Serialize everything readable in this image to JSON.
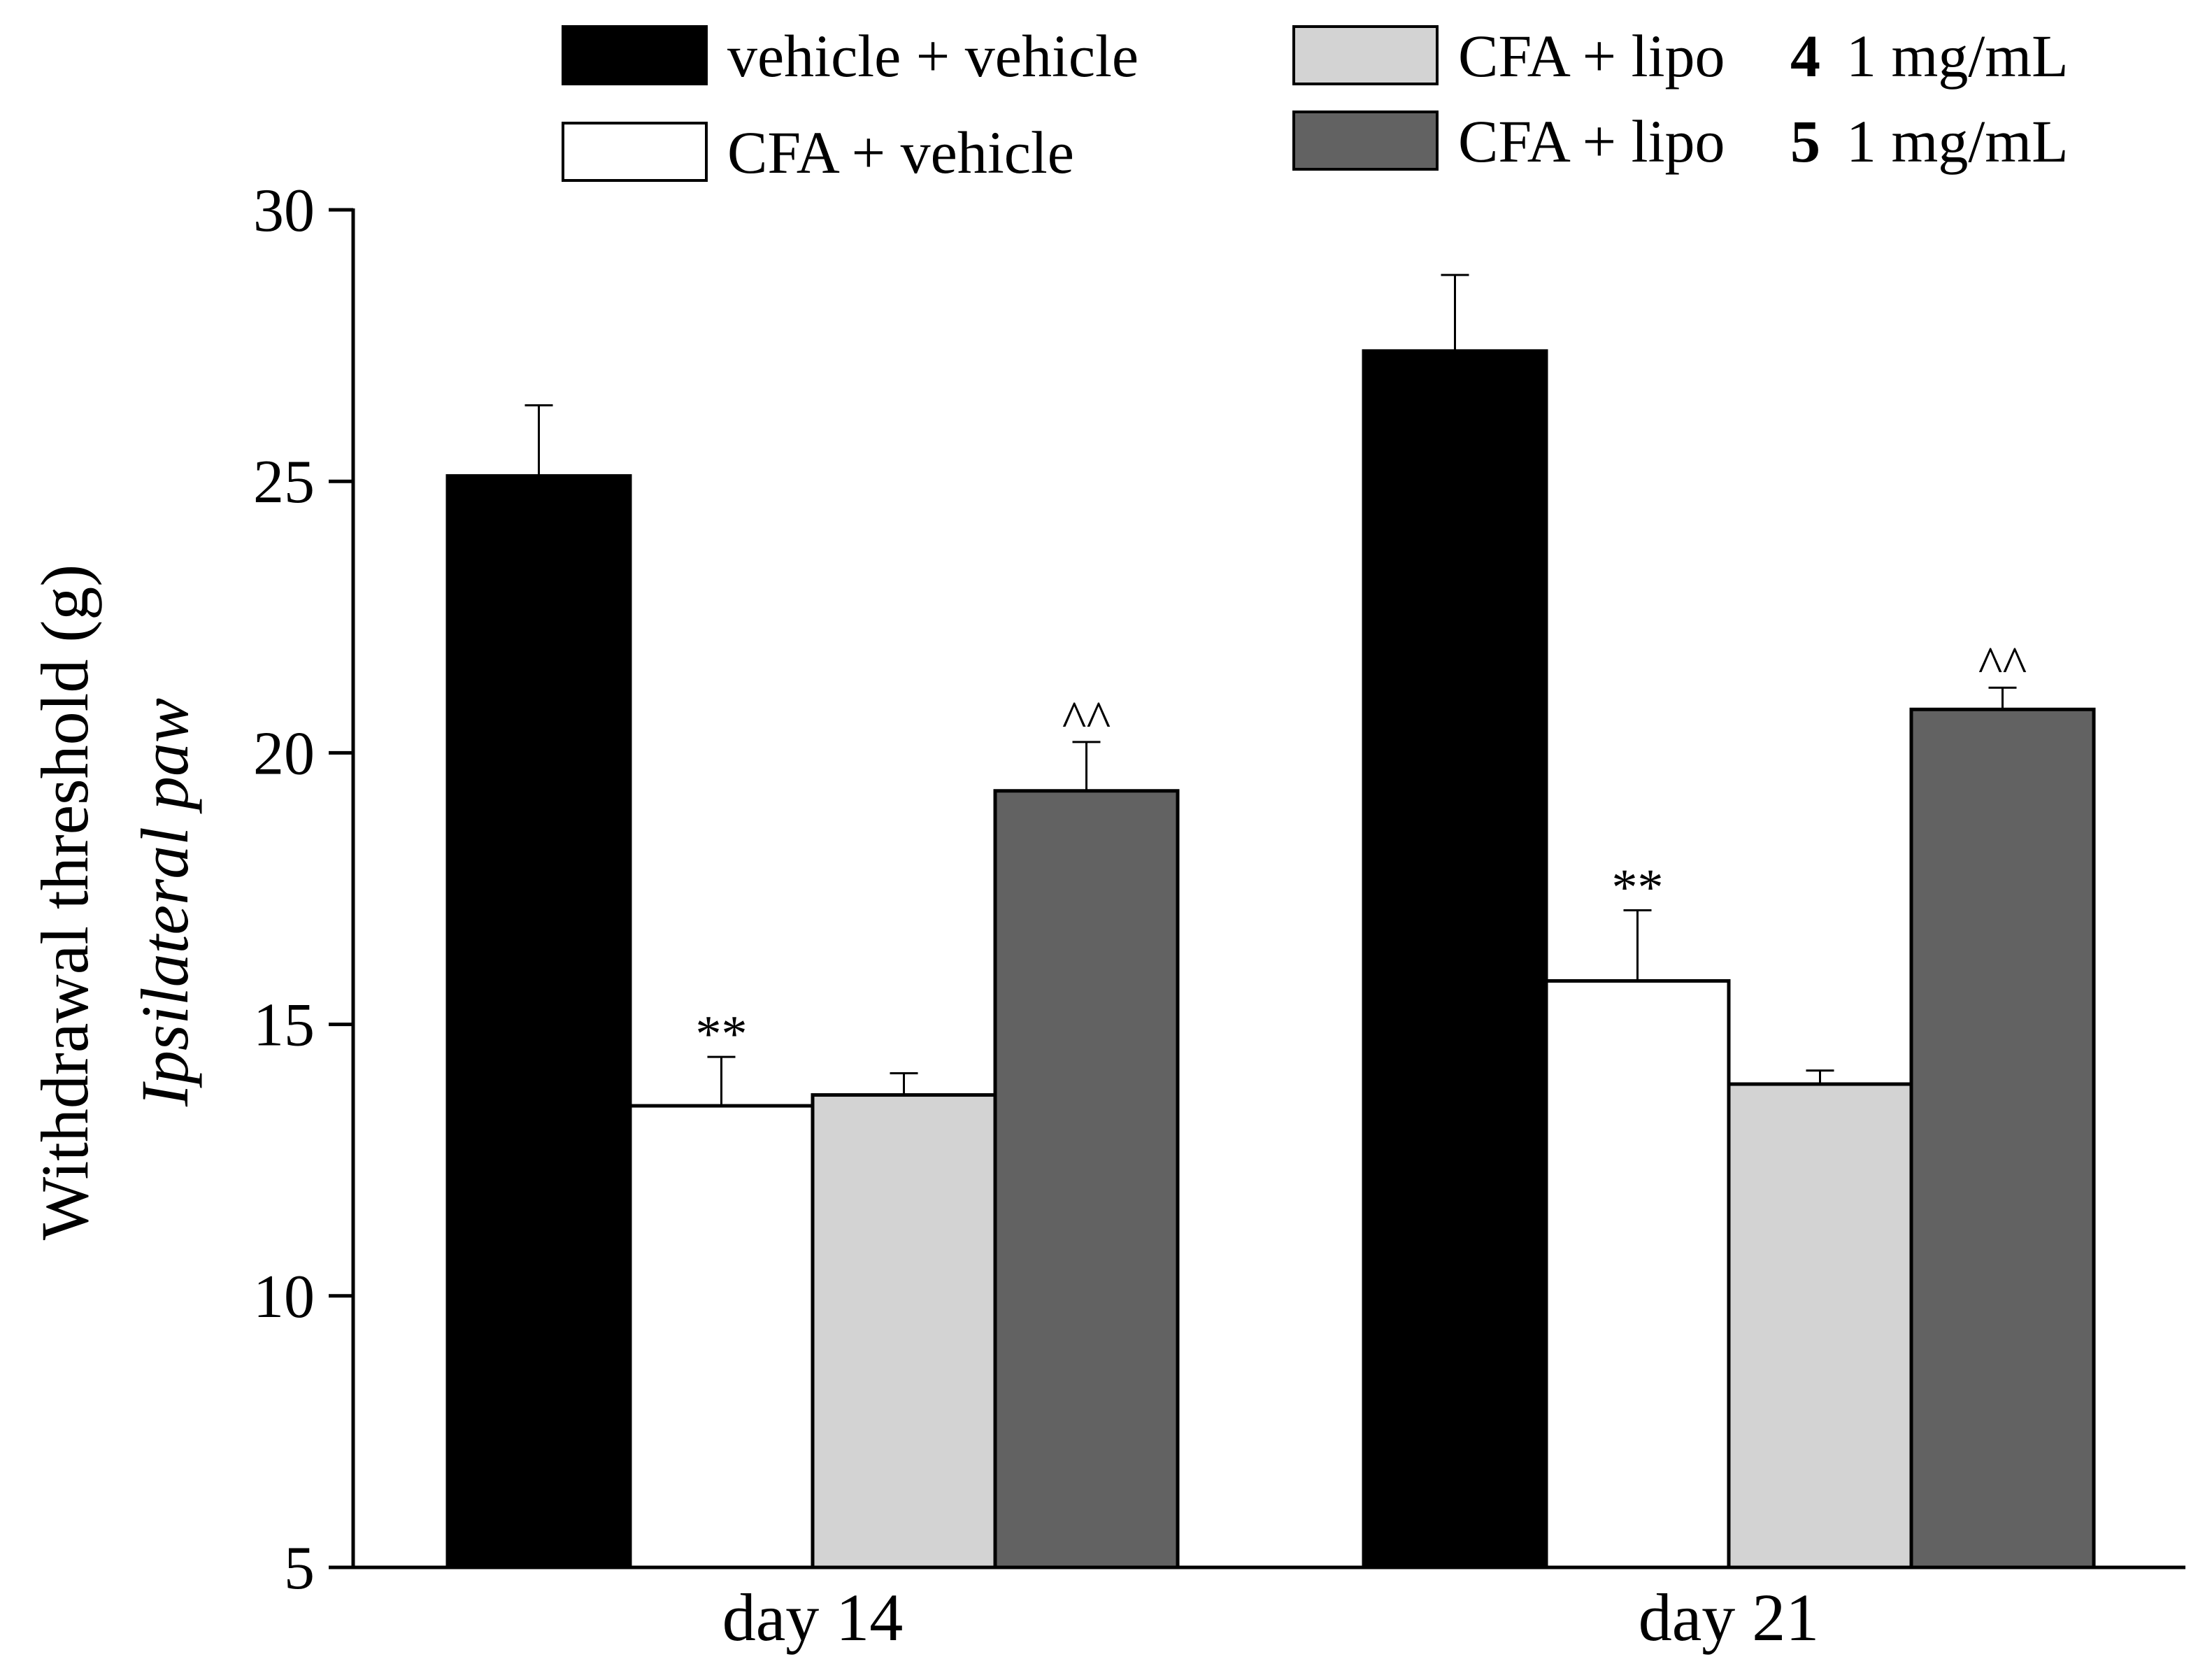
{
  "chart_data": {
    "type": "bar",
    "categories": [
      "day 14",
      "day 21"
    ],
    "ylabel_line1": "Withdrawal threshold (g)",
    "ylabel_line2": "Ipsilateral paw",
    "ylim": [
      5,
      30
    ],
    "yticks": [
      5,
      10,
      15,
      20,
      25,
      30
    ],
    "series": [
      {
        "name": "vehicle + vehicle",
        "legend_label": "vehicle + vehicle",
        "legend_compound": "",
        "legend_dose": "",
        "color": "#000000",
        "values": [
          25.1,
          27.4
        ],
        "errors": [
          1.3,
          1.4
        ],
        "annotations": [
          "",
          ""
        ]
      },
      {
        "name": "CFA + vehicle",
        "legend_label": "CFA + vehicle",
        "legend_compound": "",
        "legend_dose": "",
        "color": "#ffffff",
        "values": [
          13.5,
          15.8
        ],
        "errors": [
          0.9,
          1.3
        ],
        "annotations": [
          "**",
          "**"
        ]
      },
      {
        "name": "CFA + lipo 4 1 mg/mL",
        "legend_label": "CFA + lipo",
        "legend_compound": "4",
        "legend_dose": "1 mg/mL",
        "color": "#d3d3d3",
        "values": [
          13.7,
          13.9
        ],
        "errors": [
          0.4,
          0.25
        ],
        "annotations": [
          "",
          ""
        ]
      },
      {
        "name": "CFA + lipo 5 1 mg/mL",
        "legend_label": "CFA + lipo",
        "legend_compound": "5",
        "legend_dose": "1 mg/mL",
        "color": "#626262",
        "values": [
          19.3,
          20.8
        ],
        "errors": [
          0.9,
          0.4
        ],
        "annotations": [
          "^^",
          "^^"
        ]
      }
    ],
    "legend_position": "top",
    "grid": false
  }
}
